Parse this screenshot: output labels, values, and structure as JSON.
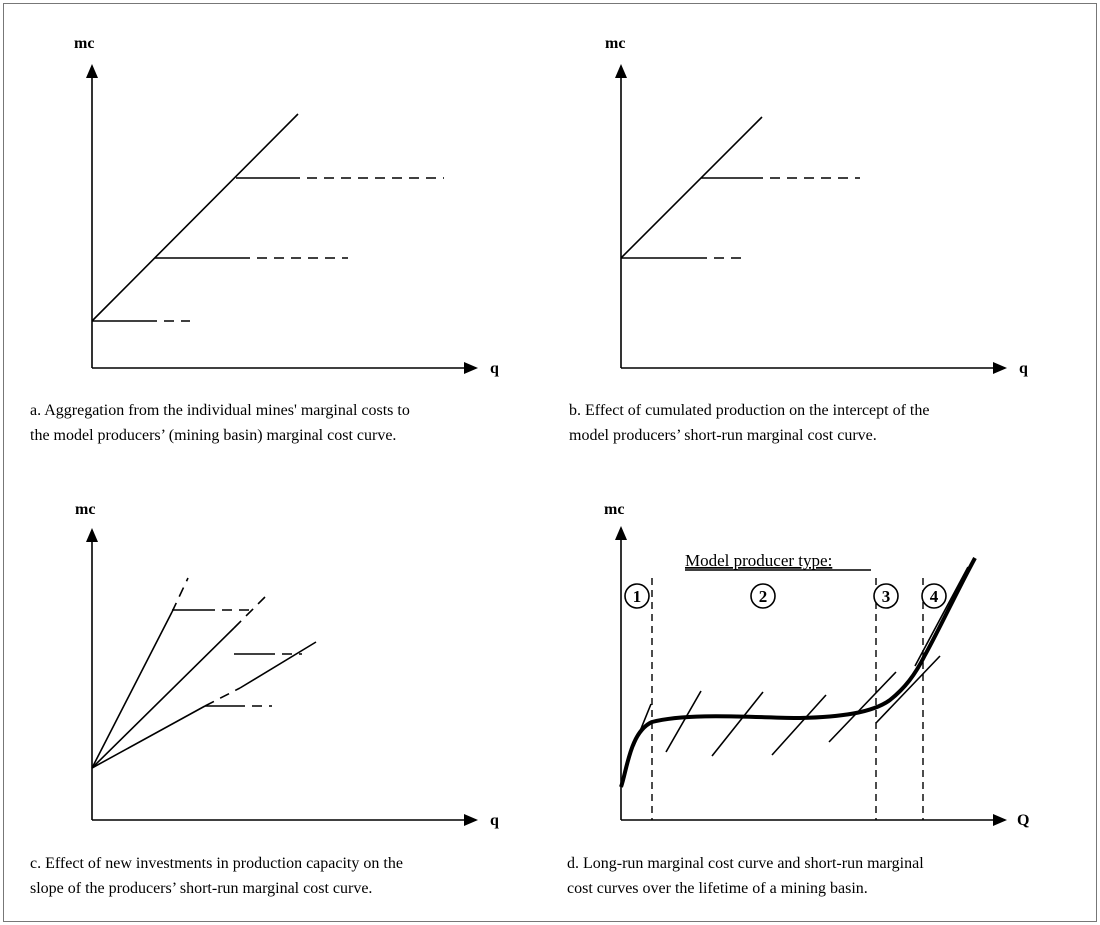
{
  "panel_a": {
    "y_label": "mc",
    "x_label": "q",
    "caption_line1": "a. Aggregation from the individual mines' marginal costs to",
    "caption_line2": "the model producers’ (mining basin) marginal cost curve."
  },
  "panel_b": {
    "y_label": "mc",
    "x_label": "q",
    "caption_line1": "b. Effect of cumulated production on the intercept of the",
    "caption_line2": "model producers’ short-run marginal cost curve."
  },
  "panel_c": {
    "y_label": "mc",
    "x_label": "q",
    "caption_line1": "c. Effect of new investments in production capacity on the",
    "caption_line2": "slope of the producers’ short-run marginal cost curve."
  },
  "panel_d": {
    "y_label": "mc",
    "x_label": "Q",
    "heading": "Model producer type:",
    "producer_types": [
      "1",
      "2",
      "3",
      "4"
    ],
    "caption_line1": "d. Long-run marginal cost curve and short-run marginal",
    "caption_line2": "cost curves over the lifetime of a mining basin."
  }
}
